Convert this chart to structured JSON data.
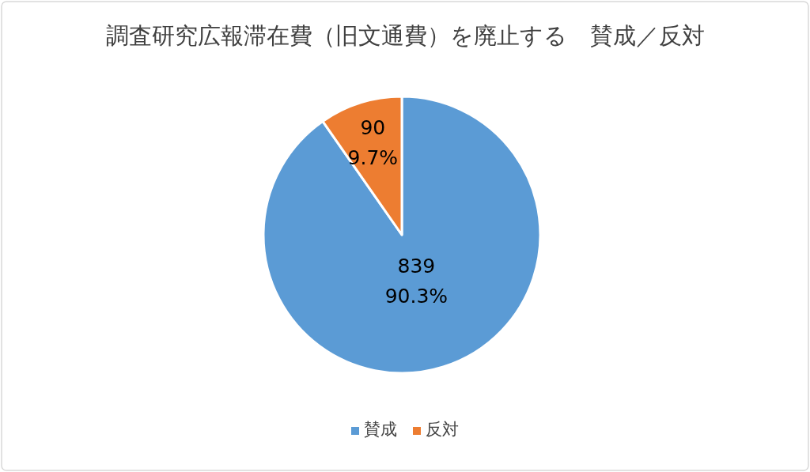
{
  "chart_data": {
    "type": "pie",
    "title": "調査研究広報滞在費（旧文通費）を廃止する　賛成／反対",
    "categories": [
      "賛成",
      "反対"
    ],
    "values": [
      839,
      90
    ],
    "colors": [
      "#5b9bd5",
      "#ed7d31"
    ],
    "value_labels": [
      "839\n90.3%",
      "90\n9.7%"
    ],
    "legend": "bottom"
  }
}
